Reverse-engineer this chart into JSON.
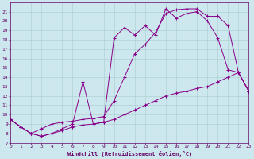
{
  "xlabel": "Windchill (Refroidissement éolien,°C)",
  "bg_color": "#cce8ee",
  "line_color": "#880088",
  "grid_color": "#aacccc",
  "xlim": [
    0,
    23
  ],
  "ylim": [
    7,
    22
  ],
  "yticks": [
    7,
    8,
    9,
    10,
    11,
    12,
    13,
    14,
    15,
    16,
    17,
    18,
    19,
    20,
    21
  ],
  "xticks": [
    0,
    1,
    2,
    3,
    4,
    5,
    6,
    7,
    8,
    9,
    10,
    11,
    12,
    13,
    14,
    15,
    16,
    17,
    18,
    19,
    20,
    21,
    22,
    23
  ],
  "series1_x": [
    0,
    1,
    2,
    3,
    4,
    5,
    6,
    7,
    8,
    9,
    10,
    11,
    12,
    13,
    14,
    15,
    16,
    17,
    18,
    19,
    20,
    21,
    22,
    23
  ],
  "series1_y": [
    9.5,
    8.7,
    8.0,
    8.5,
    9.0,
    9.2,
    9.3,
    9.5,
    9.6,
    9.8,
    11.5,
    14.0,
    16.5,
    17.5,
    18.8,
    20.8,
    21.2,
    21.3,
    21.3,
    20.5,
    20.5,
    19.5,
    14.5,
    12.5
  ],
  "series2_x": [
    0,
    1,
    2,
    3,
    4,
    5,
    6,
    7,
    8,
    9,
    10,
    11,
    12,
    13,
    14,
    15,
    16,
    17,
    18,
    19,
    20,
    21,
    22,
    23
  ],
  "series2_y": [
    9.5,
    8.7,
    8.0,
    7.7,
    8.0,
    8.5,
    9.0,
    13.5,
    9.0,
    9.2,
    18.2,
    19.3,
    18.5,
    19.5,
    18.5,
    21.3,
    20.3,
    20.8,
    21.0,
    20.0,
    18.2,
    14.8,
    14.5,
    12.5
  ],
  "series3_x": [
    0,
    1,
    2,
    3,
    4,
    5,
    6,
    7,
    8,
    9,
    10,
    11,
    12,
    13,
    14,
    15,
    16,
    17,
    18,
    19,
    20,
    21,
    22,
    23
  ],
  "series3_y": [
    9.5,
    8.7,
    8.0,
    7.7,
    8.0,
    8.3,
    8.7,
    8.9,
    9.0,
    9.2,
    9.5,
    10.0,
    10.5,
    11.0,
    11.5,
    12.0,
    12.3,
    12.5,
    12.8,
    13.0,
    13.5,
    14.0,
    14.5,
    12.5
  ]
}
